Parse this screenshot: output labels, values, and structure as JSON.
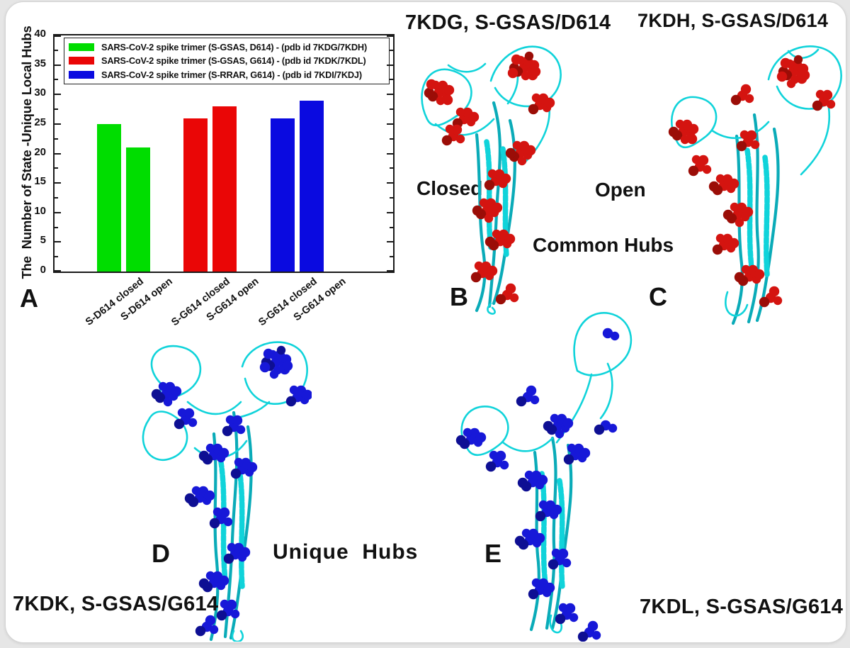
{
  "window": {
    "background": "#e6e6e6",
    "card_background": "#ffffff"
  },
  "panel_a": {
    "label": "A"
  },
  "panel_b": {
    "label": "B",
    "title": "7KDG, S-GSAS/D614",
    "state": "Closed"
  },
  "panel_c": {
    "label": "C",
    "title": "7KDH, S-GSAS/D614",
    "state": "Open"
  },
  "panel_d": {
    "label": "D",
    "title": "7KDK, S-GSAS/G614"
  },
  "panel_e": {
    "label": "E",
    "title": "7KDL, S-GSAS/G614"
  },
  "annotations": {
    "common_hubs": "Common Hubs",
    "unique_hubs": "Unique  Hubs"
  },
  "chart_data": {
    "type": "bar",
    "title": "",
    "xlabel": "",
    "ylabel": "The  Number of State -Unique Local Hubs",
    "ylim": [
      0,
      40
    ],
    "ytick_step": 5,
    "ytick_minor_step": 2.5,
    "grid": false,
    "legend_position": "upper-left-inside",
    "categories": [
      "S-D614 closed",
      "S-D614 open",
      "S-G614 closed",
      "S-G614 open",
      "S-G614 closed",
      "S-G614 open"
    ],
    "values": [
      25,
      21,
      26,
      28,
      26,
      29
    ],
    "bar_colors": [
      "#00dd00",
      "#00dd00",
      "#ea0606",
      "#ea0606",
      "#0a0ae0",
      "#0a0ae0"
    ],
    "series_groups": [
      {
        "name": "S-GSAS, D614 (7KDG/7KDH)",
        "color": "#00dd00",
        "closed": 25,
        "open": 21
      },
      {
        "name": "S-GSAS, G614 (7KDK/7KDL)",
        "color": "#ea0606",
        "closed": 26,
        "open": 28
      },
      {
        "name": "S-RRAR, G614 (7KDI/7KDJ)",
        "color": "#0a0ae0",
        "closed": 26,
        "open": 29
      }
    ],
    "legend": [
      {
        "color": "#00dd00",
        "label": "SARS-CoV-2 spike trimer (S-GSAS, D614) - (pdb id 7KDG/7KDH)"
      },
      {
        "color": "#ea0606",
        "label": "SARS-CoV-2 spike trimer (S-GSAS, G614) - (pdb id 7KDK/7KDL)"
      },
      {
        "color": "#0a0ae0",
        "label": "SARS-CoV-2 spike trimer (S-RRAR, G614) - (pdb id 7KDI/7KDJ)"
      }
    ]
  },
  "colors": {
    "ribbon": "#10d3da",
    "ribbon_dark": "#0aabb8",
    "common_hub": "#d41410",
    "common_hub_dark": "#9b0d07",
    "unique_hub": "#1718d8",
    "unique_hub_dark": "#0e0f93"
  }
}
